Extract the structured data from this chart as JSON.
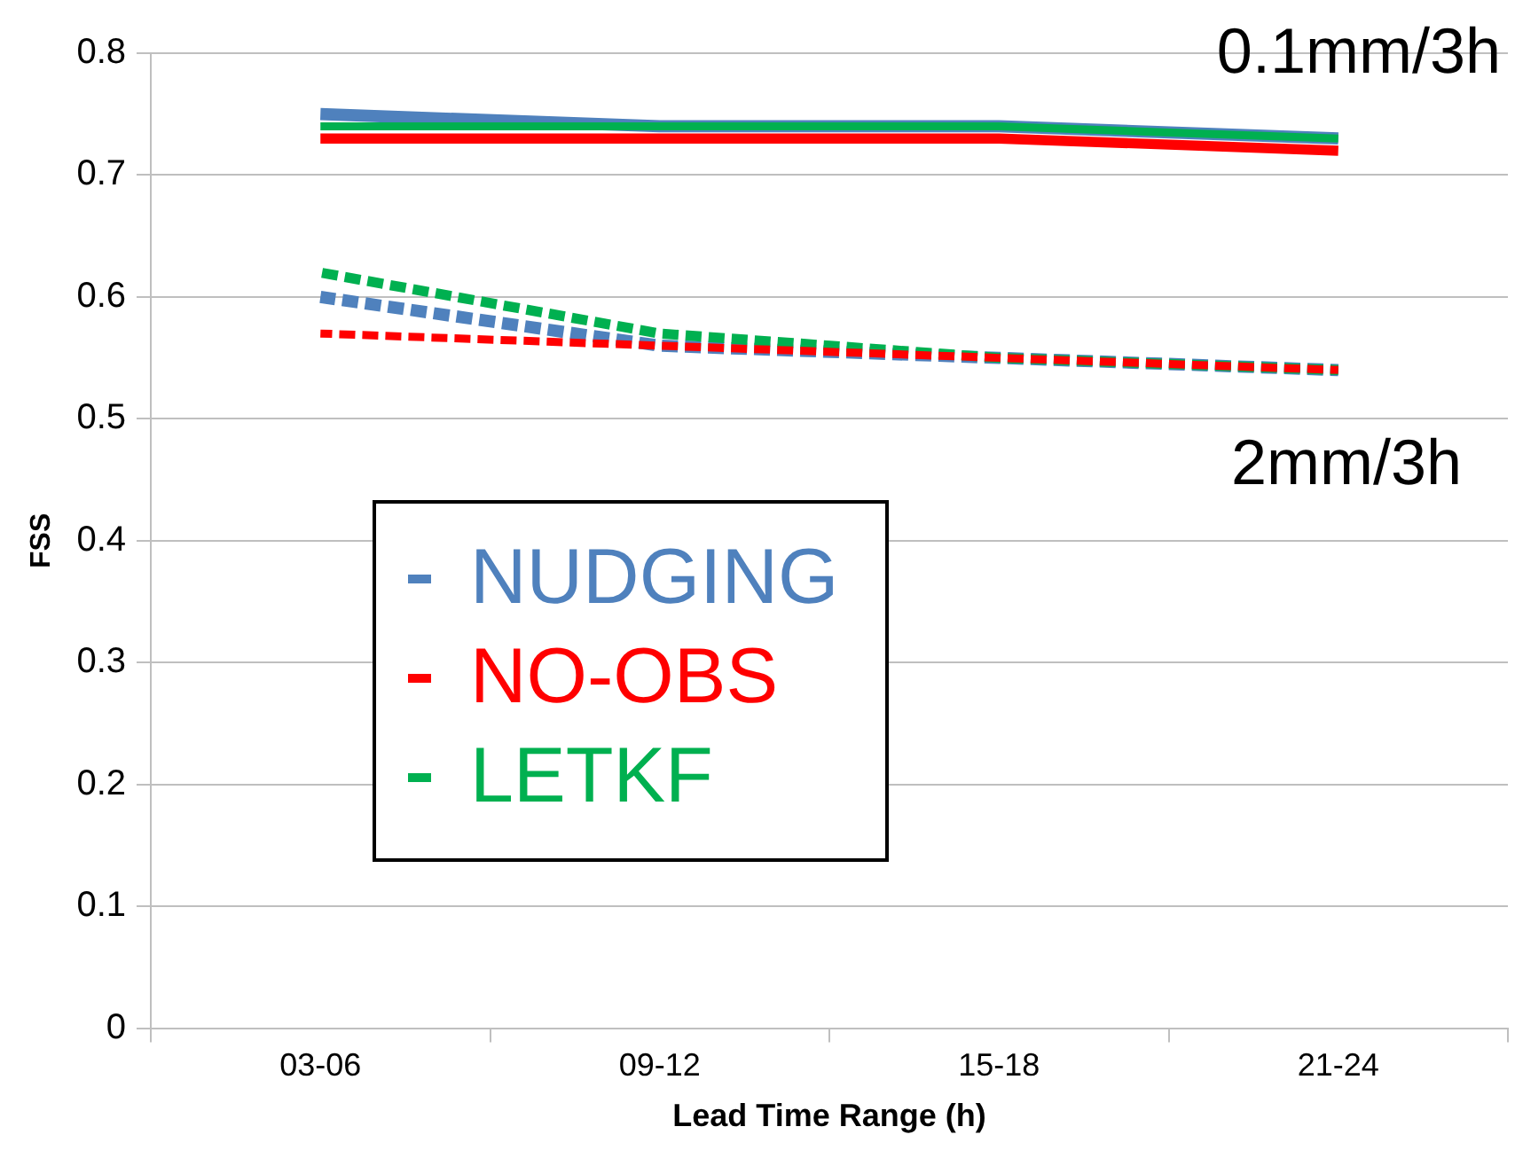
{
  "chart_data": {
    "type": "line",
    "xlabel": "Lead Time Range (h)",
    "ylabel": "FSS",
    "categories": [
      "03-06",
      "09-12",
      "15-18",
      "21-24"
    ],
    "series": [
      {
        "name": "NUDGING",
        "color": "#4f81bd",
        "line_style": "solid",
        "values": [
          0.75,
          0.74,
          0.74,
          0.73
        ]
      },
      {
        "name": "NO-OBS",
        "color": "#ff0000",
        "line_style": "solid",
        "values": [
          0.73,
          0.73,
          0.73,
          0.72
        ]
      },
      {
        "name": "LETKF",
        "color": "#00b050",
        "line_style": "solid",
        "values": [
          0.74,
          0.74,
          0.74,
          0.73
        ]
      },
      {
        "color": "#4f81bd",
        "line_style": "dashed",
        "values": [
          0.6,
          0.56,
          0.55,
          0.54
        ]
      },
      {
        "color": "#00b050",
        "line_style": "dashed",
        "values": [
          0.62,
          0.57,
          0.55,
          0.54
        ]
      },
      {
        "color": "#ff0000",
        "line_style": "dashed",
        "values": [
          0.57,
          0.56,
          0.55,
          0.54
        ]
      }
    ],
    "ylim": [
      0,
      0.8
    ],
    "yticks": [
      0,
      0.1,
      0.2,
      0.3,
      0.4,
      0.5,
      0.6,
      0.7,
      0.8
    ],
    "grid": "y",
    "legend": "center",
    "marker": "none",
    "annotations": [
      "0.1mm/3h",
      "2mm/3h"
    ]
  }
}
